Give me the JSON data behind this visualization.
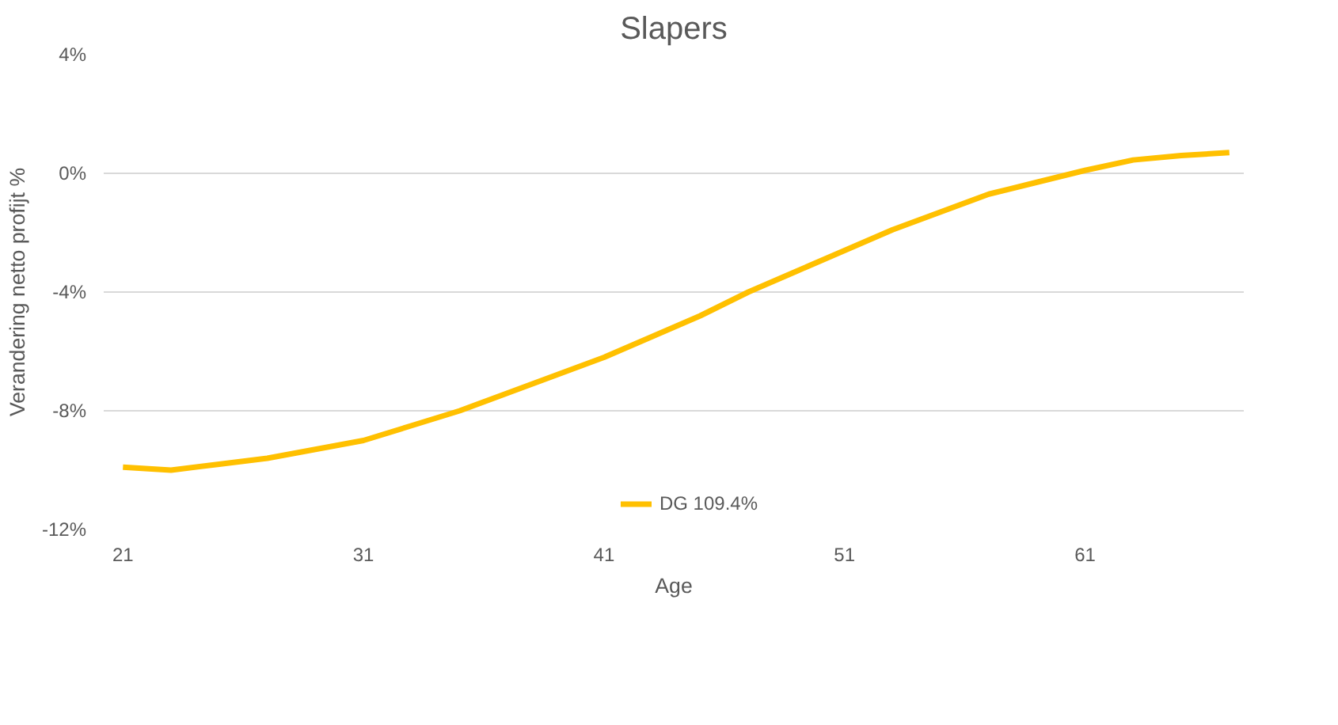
{
  "chart_data": {
    "type": "line",
    "title": "Slapers",
    "xlabel": "Age",
    "ylabel": "Verandering netto profijt %",
    "x": [
      21,
      23,
      25,
      27,
      29,
      31,
      33,
      35,
      37,
      39,
      41,
      43,
      45,
      47,
      49,
      51,
      53,
      55,
      57,
      59,
      61,
      63,
      65,
      67
    ],
    "series": [
      {
        "name": "DG 109.4%",
        "color": "#ffc000",
        "values": [
          -9.9,
          -10.0,
          -9.8,
          -9.6,
          -9.3,
          -9.0,
          -8.5,
          -8.0,
          -7.4,
          -6.8,
          -6.2,
          -5.5,
          -4.8,
          -4.0,
          -3.3,
          -2.6,
          -1.9,
          -1.3,
          -0.7,
          -0.3,
          0.1,
          0.45,
          0.6,
          0.7
        ]
      }
    ],
    "xlim": [
      20.2,
      67.6
    ],
    "xticks": [
      21,
      31,
      41,
      51,
      61
    ],
    "ylim": [
      -12,
      4
    ],
    "yticks": [
      {
        "value": -12,
        "label": "-12%"
      },
      {
        "value": -8,
        "label": "-8%"
      },
      {
        "value": -4,
        "label": "-4%"
      },
      {
        "value": 0,
        "label": "0%"
      },
      {
        "value": 4,
        "label": "4%"
      }
    ],
    "grid": "y",
    "legend": "bottom",
    "marker": "none",
    "line_style": "solid"
  }
}
